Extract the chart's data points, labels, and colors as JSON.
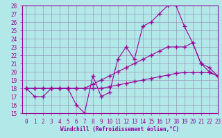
{
  "xlabel": "Windchill (Refroidissement éolien,°C)",
  "bg_color": "#b2e8e8",
  "grid_color": "#9999bb",
  "line_color": "#990099",
  "x_values": [
    0,
    1,
    2,
    3,
    4,
    5,
    6,
    7,
    8,
    9,
    10,
    11,
    12,
    13,
    14,
    15,
    16,
    17,
    18,
    19,
    20,
    21,
    22,
    23
  ],
  "line1": [
    18,
    17,
    17,
    18,
    18,
    18,
    16,
    15,
    19.5,
    17,
    17.5,
    21.5,
    23,
    21.5,
    25.5,
    26,
    27,
    28,
    28,
    25.5,
    23.5,
    21,
    20.5,
    19.5
  ],
  "line2": [
    18,
    18,
    18,
    18,
    18,
    18,
    18,
    18,
    18,
    18,
    18.2,
    18.4,
    18.6,
    18.8,
    19,
    19.2,
    19.4,
    19.6,
    19.8,
    19.9,
    19.9,
    19.9,
    19.9,
    19.5
  ],
  "line3": [
    18,
    18,
    18,
    18,
    18,
    18,
    18,
    18,
    18.5,
    19,
    19.5,
    20,
    20.5,
    21,
    21.5,
    22,
    22.5,
    23,
    23,
    23,
    23.5,
    21,
    20,
    19.5
  ],
  "ylim": [
    15,
    28
  ],
  "xlim": [
    -0.5,
    23
  ],
  "yticks": [
    15,
    16,
    17,
    18,
    19,
    20,
    21,
    22,
    23,
    24,
    25,
    26,
    27,
    28
  ],
  "xticks": [
    0,
    1,
    2,
    3,
    4,
    5,
    6,
    7,
    8,
    9,
    10,
    11,
    12,
    13,
    14,
    15,
    16,
    17,
    18,
    19,
    20,
    21,
    22,
    23
  ],
  "marker": "+",
  "markersize": 4,
  "linewidth": 0.8,
  "tick_labelsize": 5.5,
  "xlabel_fontsize": 5.5
}
